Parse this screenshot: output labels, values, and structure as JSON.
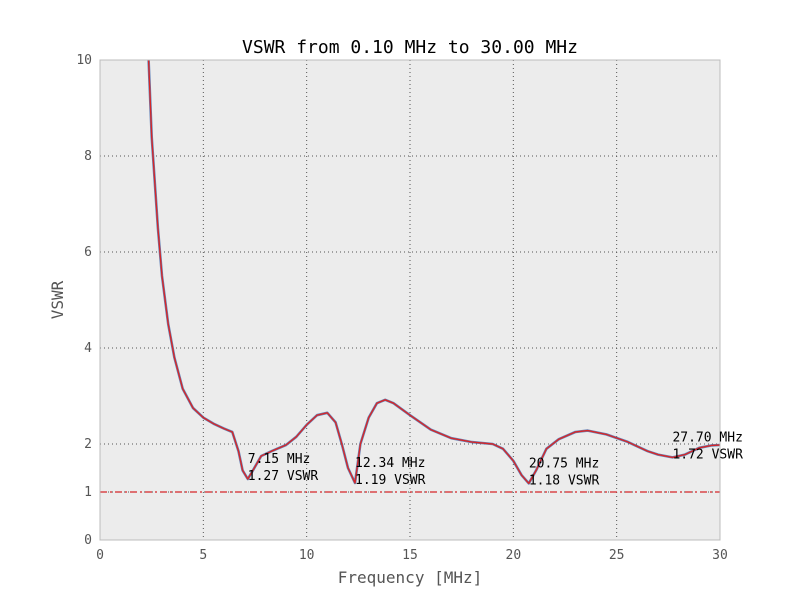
{
  "chart_data": {
    "type": "line",
    "title": "VSWR from 0.10 MHz to 30.00 MHz",
    "xlabel": "Frequency [MHz]",
    "ylabel": "VSWR",
    "xlim": [
      0,
      30
    ],
    "ylim": [
      0,
      10
    ],
    "x_ticks": [
      "0",
      "5",
      "10",
      "15",
      "20",
      "25",
      "30"
    ],
    "y_ticks": [
      "0",
      "1",
      "2",
      "4",
      "6",
      "8",
      "10"
    ],
    "grid": true,
    "colors": {
      "background": "#ececec",
      "primary_line": "#d62728",
      "secondary_line": "#4c72b0",
      "reference_line": "#d62728",
      "grid": "#555555"
    },
    "series": [
      {
        "x": [
          2.35,
          2.5,
          2.8,
          3.0,
          3.3,
          3.6,
          4.0,
          4.5,
          5.0,
          5.5,
          6.0,
          6.4,
          6.7,
          6.9,
          7.15,
          7.4,
          7.8,
          8.3,
          9.0,
          9.5,
          10.0,
          10.5,
          11.0,
          11.4,
          11.7,
          12.0,
          12.34,
          12.6,
          13.0,
          13.4,
          13.8,
          14.2,
          15.0,
          16.0,
          17.0,
          18.0,
          19.0,
          19.5,
          20.0,
          20.4,
          20.75,
          21.1,
          21.6,
          22.2,
          23.0,
          23.6,
          24.5,
          25.5,
          26.5,
          27.0,
          27.7,
          28.3,
          29.0,
          29.6,
          30.0
        ],
        "values": [
          10.0,
          8.4,
          6.5,
          5.5,
          4.5,
          3.8,
          3.15,
          2.75,
          2.55,
          2.42,
          2.32,
          2.25,
          1.85,
          1.45,
          1.27,
          1.45,
          1.75,
          1.85,
          1.98,
          2.15,
          2.4,
          2.6,
          2.65,
          2.45,
          2.0,
          1.5,
          1.19,
          2.0,
          2.55,
          2.85,
          2.92,
          2.85,
          2.6,
          2.3,
          2.12,
          2.04,
          2.0,
          1.9,
          1.65,
          1.35,
          1.18,
          1.45,
          1.9,
          2.1,
          2.25,
          2.28,
          2.2,
          2.05,
          1.85,
          1.78,
          1.72,
          1.78,
          1.92,
          1.97,
          1.98
        ]
      },
      {
        "x": [
          1.0
        ],
        "values": [
          1.0
        ]
      }
    ],
    "reference_line": {
      "y": 1.0
    },
    "annotations": [
      {
        "x": 7.15,
        "y": 1.27,
        "line1": "7.15 MHz",
        "line2": "1.27 VSWR"
      },
      {
        "x": 12.34,
        "y": 1.19,
        "line1": "12.34 MHz",
        "line2": "1.19 VSWR"
      },
      {
        "x": 20.75,
        "y": 1.18,
        "line1": "20.75 MHz",
        "line2": "1.18 VSWR"
      },
      {
        "x": 27.7,
        "y": 1.72,
        "line1": "27.70 MHz",
        "line2": "1.72 VSWR"
      }
    ]
  }
}
